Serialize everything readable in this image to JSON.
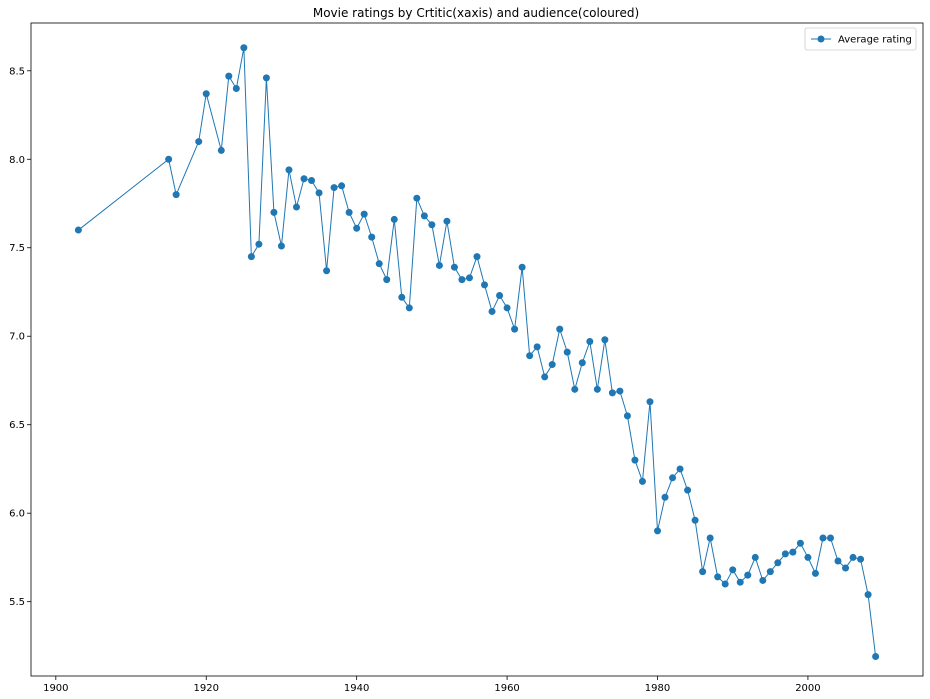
{
  "chart_data": {
    "type": "line",
    "title": "Movie ratings by Crtitic(xaxis) and audience(coloured)",
    "xlabel": "",
    "ylabel": "",
    "xlim": [
      1896.7,
      2015.3
    ],
    "ylim": [
      5.08,
      8.77
    ],
    "x_ticks": [
      1900,
      1920,
      1940,
      1960,
      1980,
      2000
    ],
    "y_ticks": [
      5.5,
      6.0,
      6.5,
      7.0,
      7.5,
      8.0,
      8.5
    ],
    "grid": false,
    "legend_position": "top-right",
    "series": [
      {
        "name": "Average rating",
        "color": "#1f77b4",
        "marker": "circle",
        "points": [
          [
            1903,
            7.6
          ],
          [
            1915,
            8.0
          ],
          [
            1916,
            7.8
          ],
          [
            1919,
            8.1
          ],
          [
            1920,
            8.37
          ],
          [
            1922,
            8.05
          ],
          [
            1923,
            8.47
          ],
          [
            1924,
            8.4
          ],
          [
            1925,
            8.63
          ],
          [
            1926,
            7.45
          ],
          [
            1927,
            7.52
          ],
          [
            1928,
            8.46
          ],
          [
            1929,
            7.7
          ],
          [
            1930,
            7.51
          ],
          [
            1931,
            7.94
          ],
          [
            1932,
            7.73
          ],
          [
            1933,
            7.89
          ],
          [
            1934,
            7.88
          ],
          [
            1935,
            7.81
          ],
          [
            1936,
            7.37
          ],
          [
            1937,
            7.84
          ],
          [
            1938,
            7.85
          ],
          [
            1939,
            7.7
          ],
          [
            1940,
            7.61
          ],
          [
            1941,
            7.69
          ],
          [
            1942,
            7.56
          ],
          [
            1943,
            7.41
          ],
          [
            1944,
            7.32
          ],
          [
            1945,
            7.66
          ],
          [
            1946,
            7.22
          ],
          [
            1947,
            7.16
          ],
          [
            1948,
            7.78
          ],
          [
            1949,
            7.68
          ],
          [
            1950,
            7.63
          ],
          [
            1951,
            7.4
          ],
          [
            1952,
            7.65
          ],
          [
            1953,
            7.39
          ],
          [
            1954,
            7.32
          ],
          [
            1955,
            7.33
          ],
          [
            1956,
            7.45
          ],
          [
            1957,
            7.29
          ],
          [
            1958,
            7.14
          ],
          [
            1959,
            7.23
          ],
          [
            1960,
            7.16
          ],
          [
            1961,
            7.04
          ],
          [
            1962,
            7.39
          ],
          [
            1963,
            6.89
          ],
          [
            1964,
            6.94
          ],
          [
            1965,
            6.77
          ],
          [
            1966,
            6.84
          ],
          [
            1967,
            7.04
          ],
          [
            1968,
            6.91
          ],
          [
            1969,
            6.7
          ],
          [
            1970,
            6.85
          ],
          [
            1971,
            6.97
          ],
          [
            1972,
            6.7
          ],
          [
            1973,
            6.98
          ],
          [
            1974,
            6.68
          ],
          [
            1975,
            6.69
          ],
          [
            1976,
            6.55
          ],
          [
            1977,
            6.3
          ],
          [
            1978,
            6.18
          ],
          [
            1979,
            6.63
          ],
          [
            1980,
            5.9
          ],
          [
            1981,
            6.09
          ],
          [
            1982,
            6.2
          ],
          [
            1983,
            6.25
          ],
          [
            1984,
            6.13
          ],
          [
            1985,
            5.96
          ],
          [
            1986,
            5.67
          ],
          [
            1987,
            5.86
          ],
          [
            1988,
            5.64
          ],
          [
            1989,
            5.6
          ],
          [
            1990,
            5.68
          ],
          [
            1991,
            5.61
          ],
          [
            1992,
            5.65
          ],
          [
            1993,
            5.75
          ],
          [
            1994,
            5.62
          ],
          [
            1995,
            5.67
          ],
          [
            1996,
            5.72
          ],
          [
            1997,
            5.77
          ],
          [
            1998,
            5.78
          ],
          [
            1999,
            5.83
          ],
          [
            2000,
            5.75
          ],
          [
            2001,
            5.66
          ],
          [
            2002,
            5.86
          ],
          [
            2003,
            5.86
          ],
          [
            2004,
            5.73
          ],
          [
            2005,
            5.69
          ],
          [
            2006,
            5.75
          ],
          [
            2007,
            5.74
          ],
          [
            2008,
            5.54
          ],
          [
            2009,
            5.19
          ]
        ]
      }
    ]
  }
}
